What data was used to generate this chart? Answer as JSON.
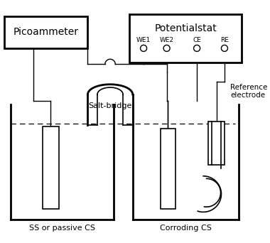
{
  "bg_color": "#ffffff",
  "line_color": "#000000",
  "picoammeter_label": "Picoammeter",
  "potentialstat_label": "Potentialstat",
  "we1_label": "WE1",
  "we2_label": "WE2",
  "ce_label": "CE",
  "re_label": "RE",
  "salt_bridge_label": "Salt-bridge",
  "reference_label": "Reference\nelectrode",
  "left_cell_label": "SS or passive CS",
  "right_cell_label": "Corroding CS"
}
